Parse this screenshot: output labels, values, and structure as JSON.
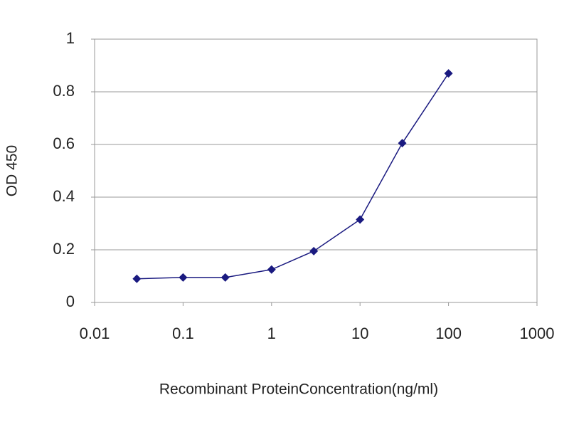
{
  "chart_data": {
    "type": "line",
    "x_label": "Recombinant ProteinConcentration(ng/ml)",
    "y_label": "OD 450",
    "x": [
      0.03,
      0.1,
      0.3,
      1,
      3,
      10,
      30,
      100
    ],
    "series": [
      {
        "color": "#1a1a80",
        "values": [
          0.09,
          0.095,
          0.095,
          0.125,
          0.195,
          0.315,
          0.605,
          0.87
        ]
      }
    ],
    "xscale": "log",
    "xlim": [
      0.01,
      1000
    ],
    "xticks": [
      0.01,
      0.1,
      1,
      10,
      100,
      1000
    ],
    "ylim": [
      0,
      1
    ],
    "yticks": [
      0,
      0.2,
      0.4,
      0.6,
      0.8,
      1
    ],
    "grid": true
  }
}
